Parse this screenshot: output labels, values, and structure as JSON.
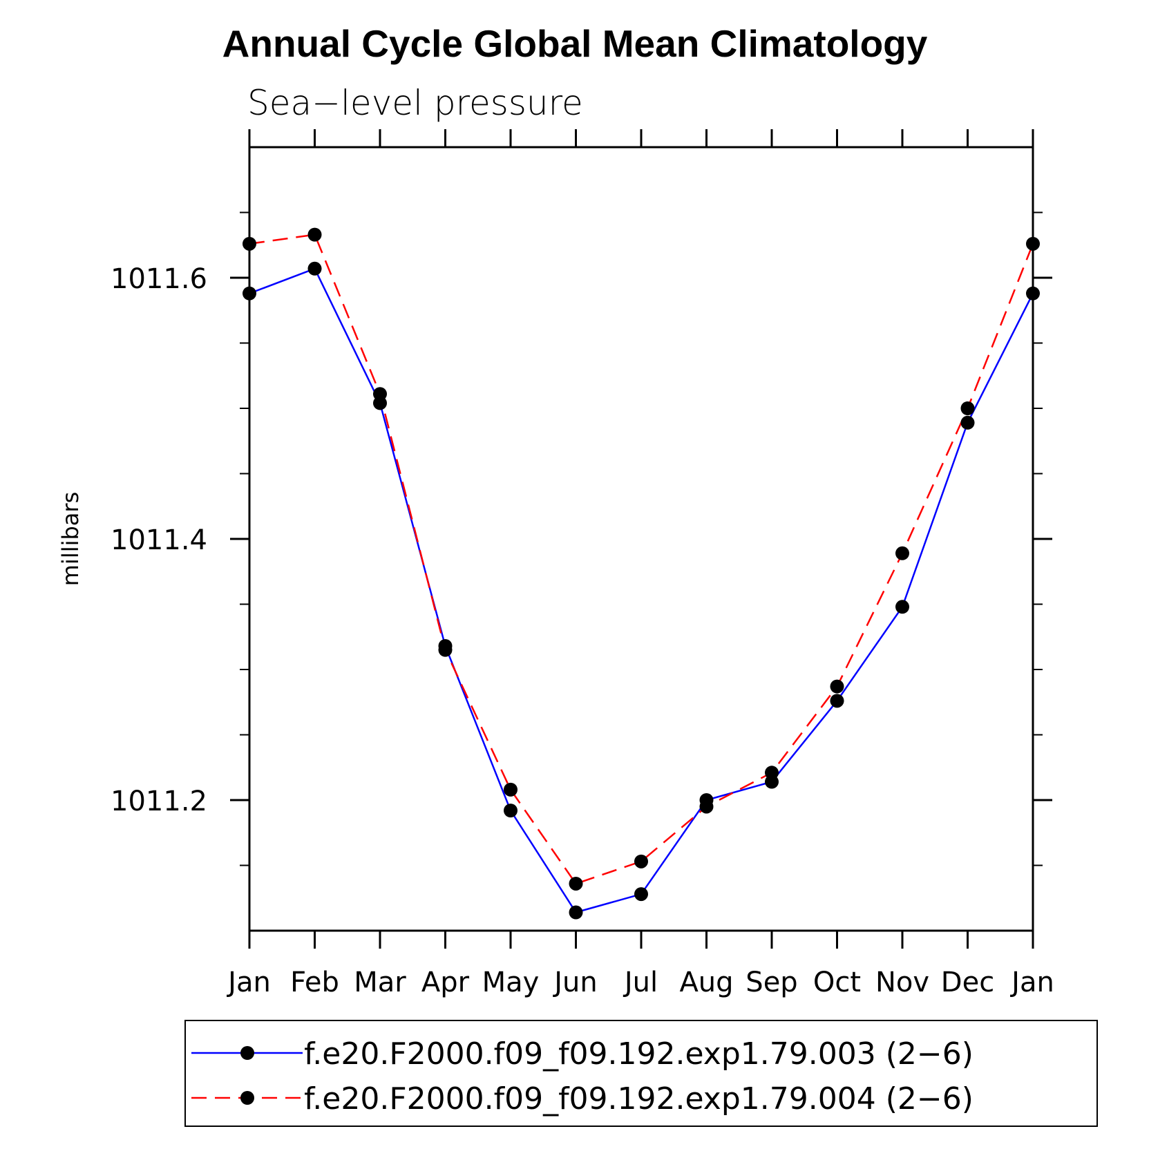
{
  "chart_data": {
    "type": "line",
    "title": "Annual Cycle Global Mean Climatology",
    "subtitle": "Sea−level pressure",
    "xlabel": "",
    "ylabel": "millibars",
    "categories": [
      "Jan",
      "Feb",
      "Mar",
      "Apr",
      "May",
      "Jun",
      "Jul",
      "Aug",
      "Sep",
      "Oct",
      "Nov",
      "Dec",
      "Jan"
    ],
    "ylim": [
      1011.1,
      1011.7
    ],
    "yticks": [
      1011.2,
      1011.4,
      1011.6
    ],
    "ytick_labels": [
      "1011.2",
      "1011.4",
      "1011.6"
    ],
    "grid": false,
    "legend_position": "bottom",
    "series": [
      {
        "name": "f.e20.F2000.f09_f09.192.exp1.79.003 (2−6)",
        "color": "#0000ff",
        "line_style": "solid",
        "marker": "filled-circle",
        "values": [
          1011.588,
          1011.607,
          1011.504,
          1011.318,
          1011.192,
          1011.114,
          1011.128,
          1011.2,
          1011.214,
          1011.276,
          1011.348,
          1011.489,
          1011.588
        ]
      },
      {
        "name": "f.e20.F2000.f09_f09.192.exp1.79.004 (2−6)",
        "color": "#ff0000",
        "line_style": "dashed",
        "marker": "filled-circle",
        "values": [
          1011.626,
          1011.633,
          1011.511,
          1011.315,
          1011.208,
          1011.136,
          1011.153,
          1011.195,
          1011.221,
          1011.287,
          1011.389,
          1011.5,
          1011.626
        ]
      }
    ]
  }
}
